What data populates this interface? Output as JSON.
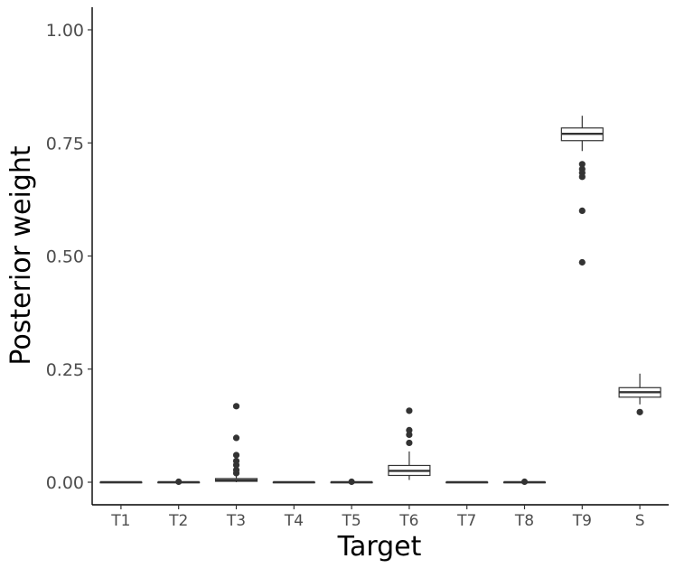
{
  "chart_data": {
    "type": "box",
    "xlabel": "Target",
    "ylabel": "Posterior weight",
    "ylim": [
      -0.045,
      1.045
    ],
    "yticks": [
      0,
      0.25,
      0.5,
      0.75,
      1
    ],
    "ytick_labels": [
      "0.00",
      "0.25",
      "0.50",
      "0.75",
      "1.00"
    ],
    "grid": false,
    "categories": [
      "T1",
      "T2",
      "T3",
      "T4",
      "T5",
      "T6",
      "T7",
      "T8",
      "T9",
      "S"
    ],
    "boxes": [
      {
        "category": "T1",
        "min": 0.0,
        "q1": 0.0,
        "median": 0.0,
        "q3": 0.0,
        "max": 0.0,
        "outliers": []
      },
      {
        "category": "T2",
        "min": 0.0,
        "q1": 0.0,
        "median": 0.0,
        "q3": 0.0,
        "max": 0.0,
        "outliers": [
          0.001
        ]
      },
      {
        "category": "T3",
        "min": 0.0,
        "q1": 0.002,
        "median": 0.004,
        "q3": 0.008,
        "max": 0.016,
        "outliers": [
          0.02,
          0.027,
          0.038,
          0.047,
          0.06,
          0.098,
          0.168
        ]
      },
      {
        "category": "T4",
        "min": 0.0,
        "q1": 0.0,
        "median": 0.0,
        "q3": 0.0,
        "max": 0.0,
        "outliers": []
      },
      {
        "category": "T5",
        "min": 0.0,
        "q1": 0.0,
        "median": 0.0,
        "q3": 0.0,
        "max": 0.0,
        "outliers": [
          0.001
        ]
      },
      {
        "category": "T6",
        "min": 0.005,
        "q1": 0.015,
        "median": 0.025,
        "q3": 0.037,
        "max": 0.068,
        "outliers": [
          0.087,
          0.105,
          0.115,
          0.158
        ]
      },
      {
        "category": "T7",
        "min": 0.0,
        "q1": 0.0,
        "median": 0.0,
        "q3": 0.0,
        "max": 0.0,
        "outliers": []
      },
      {
        "category": "T8",
        "min": 0.0,
        "q1": 0.0,
        "median": 0.0,
        "q3": 0.0,
        "max": 0.0,
        "outliers": [
          0.001
        ]
      },
      {
        "category": "T9",
        "min": 0.732,
        "q1": 0.755,
        "median": 0.77,
        "q3": 0.783,
        "max": 0.81,
        "outliers": [
          0.703,
          0.692,
          0.684,
          0.675,
          0.6,
          0.486
        ]
      },
      {
        "category": "S",
        "min": 0.172,
        "q1": 0.188,
        "median": 0.199,
        "q3": 0.209,
        "max": 0.24,
        "outliers": [
          0.155
        ]
      }
    ],
    "colors": {
      "box_line": "#333333",
      "box_fill": "#ffffff",
      "outlier": "#333333",
      "axis": "#000000",
      "tick_label": "#4d4d4d"
    }
  }
}
